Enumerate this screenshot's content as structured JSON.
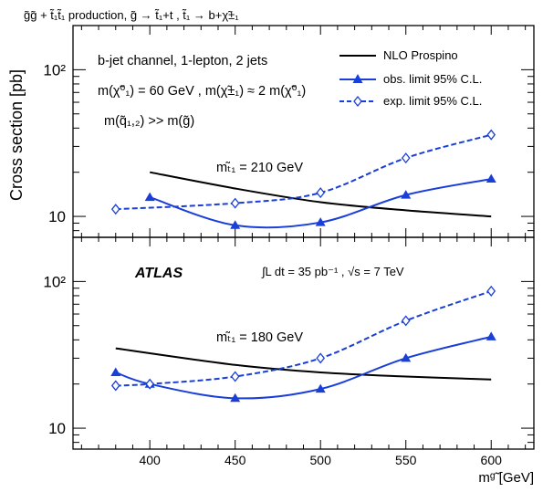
{
  "chart_data": [
    {
      "panel": "top",
      "type": "line",
      "title": "g̃g̃ + t̃₁t̃₁ production, g̃ → t̃₁+t , t̃₁ → b+χ̃±₁",
      "ylabel": "Cross section [pb]",
      "xlabel": "",
      "log_y": true,
      "xlim": [
        355,
        625
      ],
      "ylim": [
        7.2,
        200
      ],
      "x_ticks": [
        400,
        450,
        500,
        550,
        600
      ],
      "y_tick_labels": [
        {
          "value": 10,
          "label": "10"
        },
        {
          "value": 100,
          "label": "10²"
        }
      ],
      "annotations": {
        "channel": "b-jet channel, 1-lepton, 2 jets",
        "mass_relation": "m(χ̃⁰₁) = 60 GeV , m(χ̃±₁) ≈ 2 m(χ̃⁰₁)",
        "squark_relation": "m(q̃₁,₂) >> m(g̃)",
        "stop_mass": "mₜ̃₁ = 210 GeV"
      },
      "legend": {
        "position": "top-right",
        "entries": [
          {
            "name": "NLO Prospino",
            "style": "solid-black"
          },
          {
            "name": "obs. limit 95% C.L.",
            "style": "solid-blue-triangle"
          },
          {
            "name": "exp. limit 95% C.L.",
            "style": "dashed-blue-diamond"
          }
        ]
      },
      "series": [
        {
          "name": "NLO Prospino",
          "x": [
            400,
            450,
            500,
            550,
            600
          ],
          "y": [
            20,
            15.5,
            12.5,
            11,
            10
          ]
        },
        {
          "name": "obs. limit 95% C.L.",
          "x": [
            400,
            450,
            500,
            550,
            600
          ],
          "y": [
            13.5,
            8.7,
            9.1,
            14,
            18
          ]
        },
        {
          "name": "exp. limit 95% C.L.",
          "x": [
            380,
            450,
            500,
            550,
            600
          ],
          "y": [
            11.2,
            12.3,
            14.5,
            25,
            36
          ]
        }
      ]
    },
    {
      "panel": "bottom",
      "type": "line",
      "title": "",
      "ylabel": "",
      "xlabel": "mᵍ̃ [GeV]",
      "log_y": true,
      "xlim": [
        355,
        625
      ],
      "ylim": [
        7.2,
        200
      ],
      "x_ticks": [
        400,
        450,
        500,
        550,
        600
      ],
      "y_tick_labels": [
        {
          "value": 10,
          "label": "10"
        },
        {
          "value": 100,
          "label": "10²"
        }
      ],
      "annotations": {
        "experiment": "ATLAS",
        "luminosity": "∫L dt = 35 pb⁻¹ , √s = 7 TeV",
        "stop_mass": "mₜ̃₁ = 180 GeV"
      },
      "series": [
        {
          "name": "NLO Prospino",
          "x": [
            380,
            450,
            500,
            550,
            600
          ],
          "y": [
            35,
            27,
            24,
            22.5,
            21.5
          ]
        },
        {
          "name": "obs. limit 95% C.L.",
          "x": [
            380,
            400,
            450,
            500,
            550,
            600
          ],
          "y": [
            24,
            20,
            16,
            18.5,
            30,
            42
          ]
        },
        {
          "name": "exp. limit 95% C.L.",
          "x": [
            380,
            400,
            450,
            500,
            550,
            600
          ],
          "y": [
            19.5,
            20,
            22.5,
            30,
            54,
            86
          ]
        }
      ]
    }
  ]
}
